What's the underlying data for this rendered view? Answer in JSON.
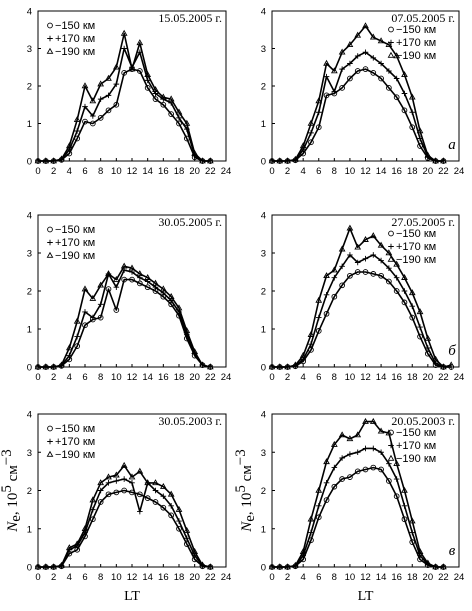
{
  "figure": {
    "row_labels": [
      "а",
      "б",
      "в"
    ],
    "xlabel": "LT",
    "ylabel": {
      "main": "N",
      "sub": "e",
      "rest": ", 10",
      "sup": "5",
      "unit": " см",
      "unit_sup": "−3"
    }
  },
  "chart_data": [
    {
      "type": "line",
      "title": "15.05.2005 г.",
      "xlabel": "",
      "ylabel": "",
      "xlim": [
        0,
        24
      ],
      "ylim": [
        0,
        4
      ],
      "xticks": [
        0,
        2,
        4,
        6,
        8,
        10,
        12,
        14,
        16,
        18,
        20,
        22,
        24
      ],
      "yticks": [
        0,
        1,
        2,
        3,
        4
      ],
      "legend_position": "top-left",
      "series": [
        {
          "name": "−150 км",
          "marker": "circle",
          "x": [
            0,
            1,
            2,
            3,
            4,
            5,
            6,
            7,
            8,
            9,
            10,
            11,
            12,
            13,
            14,
            15,
            16,
            17,
            18,
            19,
            20,
            21,
            22
          ],
          "y": [
            0,
            0,
            0,
            0.03,
            0.2,
            0.6,
            1.05,
            1.0,
            1.15,
            1.35,
            1.5,
            2.35,
            2.45,
            2.4,
            1.95,
            1.65,
            1.5,
            1.25,
            1.0,
            0.6,
            0.1,
            0,
            0
          ]
        },
        {
          "name": "+170 км",
          "marker": "plus",
          "x": [
            0,
            1,
            2,
            3,
            4,
            5,
            6,
            7,
            8,
            9,
            10,
            11,
            12,
            13,
            14,
            15,
            16,
            17,
            18,
            19,
            20,
            21,
            22
          ],
          "y": [
            0,
            0,
            0,
            0.04,
            0.3,
            0.8,
            1.45,
            1.2,
            1.65,
            1.75,
            2.05,
            3.0,
            2.5,
            2.9,
            2.15,
            1.8,
            1.65,
            1.55,
            1.15,
            0.85,
            0.15,
            0,
            0
          ]
        },
        {
          "name": "−190 км",
          "marker": "triangle",
          "x": [
            0,
            1,
            2,
            3,
            4,
            5,
            6,
            7,
            8,
            9,
            10,
            11,
            12,
            13,
            14,
            15,
            16,
            17,
            18,
            19,
            20,
            21,
            22
          ],
          "y": [
            0,
            0,
            0,
            0.05,
            0.4,
            1.1,
            2.0,
            1.6,
            2.05,
            2.2,
            2.5,
            3.4,
            2.45,
            3.15,
            2.3,
            1.9,
            1.7,
            1.65,
            1.3,
            1.0,
            0.2,
            0,
            0
          ]
        }
      ]
    },
    {
      "type": "line",
      "title": "07.05.2005 г.",
      "xlabel": "",
      "ylabel": "",
      "xlim": [
        0,
        24
      ],
      "ylim": [
        0,
        4
      ],
      "xticks": [
        0,
        2,
        4,
        6,
        8,
        10,
        12,
        14,
        16,
        18,
        20,
        22,
        24
      ],
      "yticks": [
        0,
        1,
        2,
        3,
        4
      ],
      "legend_position": "top-right",
      "series": [
        {
          "name": "−150 км",
          "marker": "circle",
          "x": [
            0,
            1,
            2,
            3,
            4,
            5,
            6,
            7,
            8,
            9,
            10,
            11,
            12,
            13,
            14,
            15,
            16,
            17,
            18,
            19,
            20,
            21,
            22
          ],
          "y": [
            0,
            0,
            0,
            0.02,
            0.2,
            0.5,
            0.9,
            1.75,
            1.8,
            1.95,
            2.2,
            2.4,
            2.45,
            2.35,
            2.2,
            1.95,
            1.7,
            1.35,
            0.9,
            0.4,
            0.08,
            0,
            0
          ]
        },
        {
          "name": "+170 км",
          "marker": "plus",
          "x": [
            0,
            1,
            2,
            3,
            4,
            5,
            6,
            7,
            8,
            9,
            10,
            11,
            12,
            13,
            14,
            15,
            16,
            17,
            18,
            19,
            20,
            21,
            22
          ],
          "y": [
            0,
            0,
            0,
            0.03,
            0.3,
            0.75,
            1.3,
            2.25,
            1.85,
            2.45,
            2.6,
            2.8,
            2.9,
            2.75,
            2.6,
            2.4,
            2.2,
            1.8,
            1.3,
            0.6,
            0.12,
            0,
            0
          ]
        },
        {
          "name": "−190 км",
          "marker": "triangle",
          "x": [
            0,
            1,
            2,
            3,
            4,
            5,
            6,
            7,
            8,
            9,
            10,
            11,
            12,
            13,
            14,
            15,
            16,
            17,
            18,
            19,
            20,
            21,
            22
          ],
          "y": [
            0,
            0,
            0,
            0.04,
            0.4,
            1.0,
            1.6,
            2.6,
            2.4,
            2.9,
            3.1,
            3.35,
            3.6,
            3.3,
            3.2,
            3.1,
            2.8,
            2.3,
            1.7,
            0.8,
            0.15,
            0,
            0
          ]
        }
      ]
    },
    {
      "type": "line",
      "title": "30.05.2005 г.",
      "xlabel": "",
      "ylabel": "",
      "xlim": [
        0,
        24
      ],
      "ylim": [
        0,
        4
      ],
      "xticks": [
        0,
        2,
        4,
        6,
        8,
        10,
        12,
        14,
        16,
        18,
        20,
        22,
        24
      ],
      "yticks": [
        0,
        1,
        2,
        3,
        4
      ],
      "legend_position": "top-left",
      "series": [
        {
          "name": "−150 км",
          "marker": "circle",
          "x": [
            0,
            1,
            2,
            3,
            4,
            5,
            6,
            7,
            8,
            9,
            10,
            11,
            12,
            13,
            14,
            15,
            16,
            17,
            18,
            19,
            20,
            21,
            22
          ],
          "y": [
            0,
            0,
            0,
            0.03,
            0.2,
            0.55,
            1.1,
            1.25,
            1.3,
            2.05,
            1.5,
            2.3,
            2.3,
            2.2,
            2.1,
            2.0,
            1.85,
            1.65,
            1.35,
            0.75,
            0.3,
            0.05,
            0
          ]
        },
        {
          "name": "+170 км",
          "marker": "plus",
          "x": [
            0,
            1,
            2,
            3,
            4,
            5,
            6,
            7,
            8,
            9,
            10,
            11,
            12,
            13,
            14,
            15,
            16,
            17,
            18,
            19,
            20,
            21,
            22
          ],
          "y": [
            0,
            0,
            0,
            0.04,
            0.3,
            0.8,
            1.45,
            1.3,
            1.65,
            2.45,
            2.1,
            2.55,
            2.5,
            2.35,
            2.25,
            2.1,
            1.95,
            1.75,
            1.45,
            0.85,
            0.35,
            0.05,
            0
          ]
        },
        {
          "name": "−190 км",
          "marker": "triangle",
          "x": [
            0,
            1,
            2,
            3,
            4,
            5,
            6,
            7,
            8,
            9,
            10,
            11,
            12,
            13,
            14,
            15,
            16,
            17,
            18,
            19,
            20,
            21,
            22
          ],
          "y": [
            0,
            0,
            0,
            0.05,
            0.5,
            1.2,
            2.05,
            1.8,
            2.15,
            2.45,
            2.3,
            2.65,
            2.6,
            2.45,
            2.35,
            2.2,
            2.05,
            1.85,
            1.55,
            0.95,
            0.4,
            0.05,
            0
          ]
        }
      ]
    },
    {
      "type": "line",
      "title": "27.05.2005 г.",
      "xlabel": "",
      "ylabel": "",
      "xlim": [
        0,
        24
      ],
      "ylim": [
        0,
        4
      ],
      "xticks": [
        0,
        2,
        4,
        6,
        8,
        10,
        12,
        14,
        16,
        18,
        20,
        22,
        24
      ],
      "yticks": [
        0,
        1,
        2,
        3,
        4
      ],
      "legend_position": "top-right",
      "series": [
        {
          "name": "−150 км",
          "marker": "circle",
          "x": [
            0,
            1,
            2,
            3,
            4,
            5,
            6,
            7,
            8,
            9,
            10,
            11,
            12,
            13,
            14,
            15,
            16,
            17,
            18,
            19,
            20,
            21,
            22,
            23
          ],
          "y": [
            0,
            0,
            0,
            0.02,
            0.15,
            0.45,
            0.95,
            1.4,
            1.85,
            2.15,
            2.4,
            2.5,
            2.5,
            2.45,
            2.4,
            2.25,
            2.0,
            1.7,
            1.3,
            0.8,
            0.35,
            0.05,
            0,
            0
          ]
        },
        {
          "name": "+170 км",
          "marker": "plus",
          "x": [
            0,
            1,
            2,
            3,
            4,
            5,
            6,
            7,
            8,
            9,
            10,
            11,
            12,
            13,
            14,
            15,
            16,
            17,
            18,
            19,
            20,
            21,
            22,
            23
          ],
          "y": [
            0,
            0,
            0,
            0.03,
            0.2,
            0.6,
            1.3,
            1.9,
            2.35,
            2.65,
            2.95,
            2.75,
            2.85,
            2.95,
            2.8,
            2.6,
            2.35,
            2.0,
            1.6,
            1.05,
            0.5,
            0.1,
            0,
            0
          ]
        },
        {
          "name": "−190 км",
          "marker": "triangle",
          "x": [
            0,
            1,
            2,
            3,
            4,
            5,
            6,
            7,
            8,
            9,
            10,
            11,
            12,
            13,
            14,
            15,
            16,
            17,
            18,
            19,
            20,
            21,
            22,
            23
          ],
          "y": [
            0,
            0,
            0,
            0.05,
            0.3,
            0.85,
            1.75,
            2.4,
            2.55,
            3.1,
            3.65,
            3.15,
            3.35,
            3.45,
            3.2,
            3.0,
            2.7,
            2.35,
            1.95,
            1.45,
            0.75,
            0.2,
            0,
            0.05
          ]
        }
      ]
    },
    {
      "type": "line",
      "title": "30.05.2003 г.",
      "xlabel": "LT",
      "ylabel": "",
      "xlim": [
        0,
        24
      ],
      "ylim": [
        0,
        4
      ],
      "xticks": [
        0,
        2,
        4,
        6,
        8,
        10,
        12,
        14,
        16,
        18,
        20,
        22,
        24
      ],
      "yticks": [
        0,
        1,
        2,
        3,
        4
      ],
      "legend_position": "top-left",
      "series": [
        {
          "name": "−150 км",
          "marker": "circle",
          "x": [
            0,
            1,
            2,
            3,
            4,
            5,
            6,
            7,
            8,
            9,
            10,
            11,
            12,
            13,
            14,
            15,
            16,
            17,
            18,
            19,
            20,
            21,
            22
          ],
          "y": [
            0,
            0,
            0,
            0.02,
            0.35,
            0.45,
            0.8,
            1.25,
            1.7,
            1.9,
            1.95,
            2.0,
            1.95,
            1.9,
            1.8,
            1.7,
            1.55,
            1.35,
            1.0,
            0.6,
            0.2,
            0.02,
            0
          ]
        },
        {
          "name": "+170 км",
          "marker": "plus",
          "x": [
            0,
            1,
            2,
            3,
            4,
            5,
            6,
            7,
            8,
            9,
            10,
            11,
            12,
            13,
            14,
            15,
            16,
            17,
            18,
            19,
            20,
            21,
            22
          ],
          "y": [
            0,
            0,
            0,
            0.03,
            0.45,
            0.55,
            0.9,
            1.5,
            2.0,
            2.2,
            2.25,
            2.3,
            2.2,
            1.45,
            2.2,
            2.0,
            1.85,
            1.6,
            1.2,
            0.75,
            0.3,
            0.04,
            0
          ]
        },
        {
          "name": "−190 км",
          "marker": "triangle",
          "x": [
            0,
            1,
            2,
            3,
            4,
            5,
            6,
            7,
            8,
            9,
            10,
            11,
            12,
            13,
            14,
            15,
            16,
            17,
            18,
            19,
            20,
            21,
            22
          ],
          "y": [
            0,
            0,
            0,
            0.04,
            0.5,
            0.6,
            1.0,
            1.75,
            2.2,
            2.35,
            2.4,
            2.65,
            2.35,
            2.5,
            2.2,
            2.2,
            2.1,
            1.9,
            1.5,
            0.95,
            0.4,
            0.05,
            0
          ]
        }
      ]
    },
    {
      "type": "line",
      "title": "20.05.2003 г.",
      "xlabel": "LT",
      "ylabel": "",
      "xlim": [
        0,
        24
      ],
      "ylim": [
        0,
        4
      ],
      "xticks": [
        0,
        2,
        4,
        6,
        8,
        10,
        12,
        14,
        16,
        18,
        20,
        22,
        24
      ],
      "yticks": [
        0,
        1,
        2,
        3,
        4
      ],
      "legend_position": "top-right",
      "series": [
        {
          "name": "−150 км",
          "marker": "circle",
          "x": [
            0,
            1,
            2,
            3,
            4,
            5,
            6,
            7,
            8,
            9,
            10,
            11,
            12,
            13,
            14,
            15,
            16,
            17,
            18,
            19,
            20,
            21,
            22
          ],
          "y": [
            0,
            0,
            0,
            0.02,
            0.2,
            0.7,
            1.3,
            1.75,
            2.1,
            2.3,
            2.35,
            2.5,
            2.55,
            2.6,
            2.55,
            2.25,
            1.85,
            1.25,
            0.65,
            0.2,
            0.05,
            0,
            0
          ]
        },
        {
          "name": "+170 км",
          "marker": "plus",
          "x": [
            0,
            1,
            2,
            3,
            4,
            5,
            6,
            7,
            8,
            9,
            10,
            11,
            12,
            13,
            14,
            15,
            16,
            17,
            18,
            19,
            20,
            21,
            22
          ],
          "y": [
            0,
            0,
            0,
            0.03,
            0.3,
            0.9,
            1.6,
            2.2,
            2.6,
            2.85,
            2.95,
            3.0,
            3.1,
            3.1,
            3.0,
            2.7,
            2.3,
            1.6,
            0.9,
            0.3,
            0.07,
            0,
            0
          ]
        },
        {
          "name": "−190 км",
          "marker": "triangle",
          "x": [
            0,
            1,
            2,
            3,
            4,
            5,
            6,
            7,
            8,
            9,
            10,
            11,
            12,
            13,
            14,
            15,
            16,
            17,
            18,
            19,
            20,
            21,
            22
          ],
          "y": [
            0,
            0,
            0,
            0.04,
            0.4,
            1.25,
            2.0,
            2.75,
            3.2,
            3.45,
            3.35,
            3.45,
            3.8,
            3.8,
            3.55,
            3.5,
            2.7,
            2.0,
            1.2,
            0.4,
            0.1,
            0,
            0
          ]
        }
      ]
    }
  ]
}
